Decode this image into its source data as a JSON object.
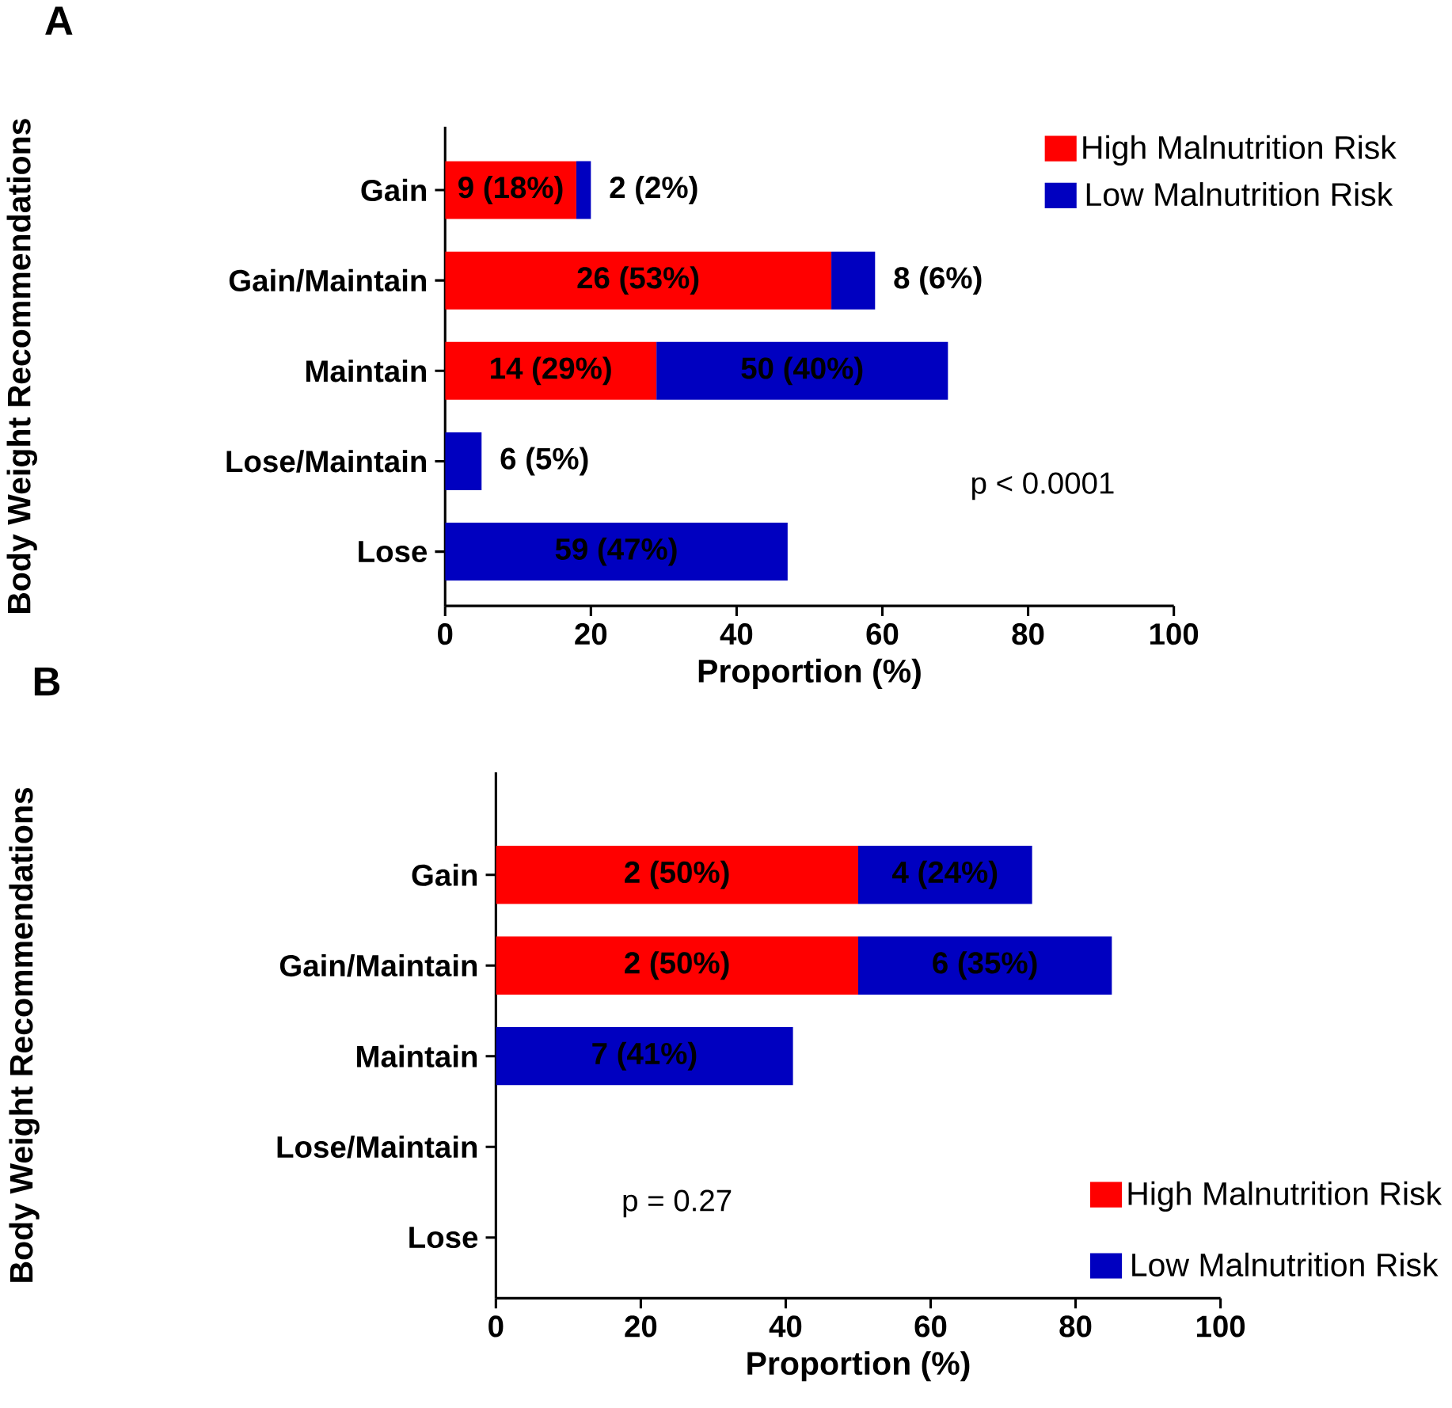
{
  "chart_data": [
    {
      "type": "bar",
      "orientation": "horizontal",
      "stacked": true,
      "title": "A",
      "xlabel": "Proportion (%)",
      "ylabel": "Body Weight Recommendations",
      "categories": [
        "Gain",
        "Gain/Maintain",
        "Maintain",
        "Lose/Maintain",
        "Lose"
      ],
      "xlim": [
        0,
        100
      ],
      "xticks": [
        0,
        20,
        40,
        60,
        80,
        100
      ],
      "legend": "top right",
      "annotations": [
        "p < 0.0001"
      ],
      "series": [
        {
          "name": "High Malnutrition Risk",
          "color": "#ff0000",
          "values": [
            18,
            53,
            29,
            null,
            null
          ],
          "value_labels": [
            "9 (18%)",
            "26 (53%)",
            "14 (29%)",
            null,
            null
          ]
        },
        {
          "name": "Low Malnutrition Risk",
          "color": "#0000c0",
          "values": [
            2,
            6,
            40,
            5,
            47
          ],
          "value_labels": [
            "2 (2%)",
            "8 (6%)",
            "50 (40%)",
            "6 (5%)",
            "59  (47%)"
          ]
        }
      ]
    },
    {
      "type": "bar",
      "orientation": "horizontal",
      "stacked": true,
      "title": "B",
      "xlabel": "Proportion (%)",
      "ylabel": "Body Weight  Recommendations",
      "categories": [
        "Gain",
        "Gain/Maintain",
        "Maintain",
        "Lose/Maintain",
        "Lose"
      ],
      "xlim": [
        0,
        100
      ],
      "xticks": [
        0,
        20,
        40,
        60,
        80,
        100
      ],
      "legend": "bottom right",
      "annotations": [
        "p = 0.27"
      ],
      "series": [
        {
          "name": "High Malnutrition Risk",
          "color": "#ff0000",
          "values": [
            50,
            50,
            null,
            null,
            null
          ],
          "value_labels": [
            "2 (50%)",
            "2 (50%)",
            null,
            null,
            null
          ]
        },
        {
          "name": "Low Malnutrition Risk",
          "color": "#0000c0",
          "values": [
            24,
            35,
            41,
            null,
            null
          ],
          "value_labels": [
            "4 (24%)",
            "6 (35%)",
            "7 (41%)",
            null,
            null
          ]
        }
      ]
    }
  ]
}
